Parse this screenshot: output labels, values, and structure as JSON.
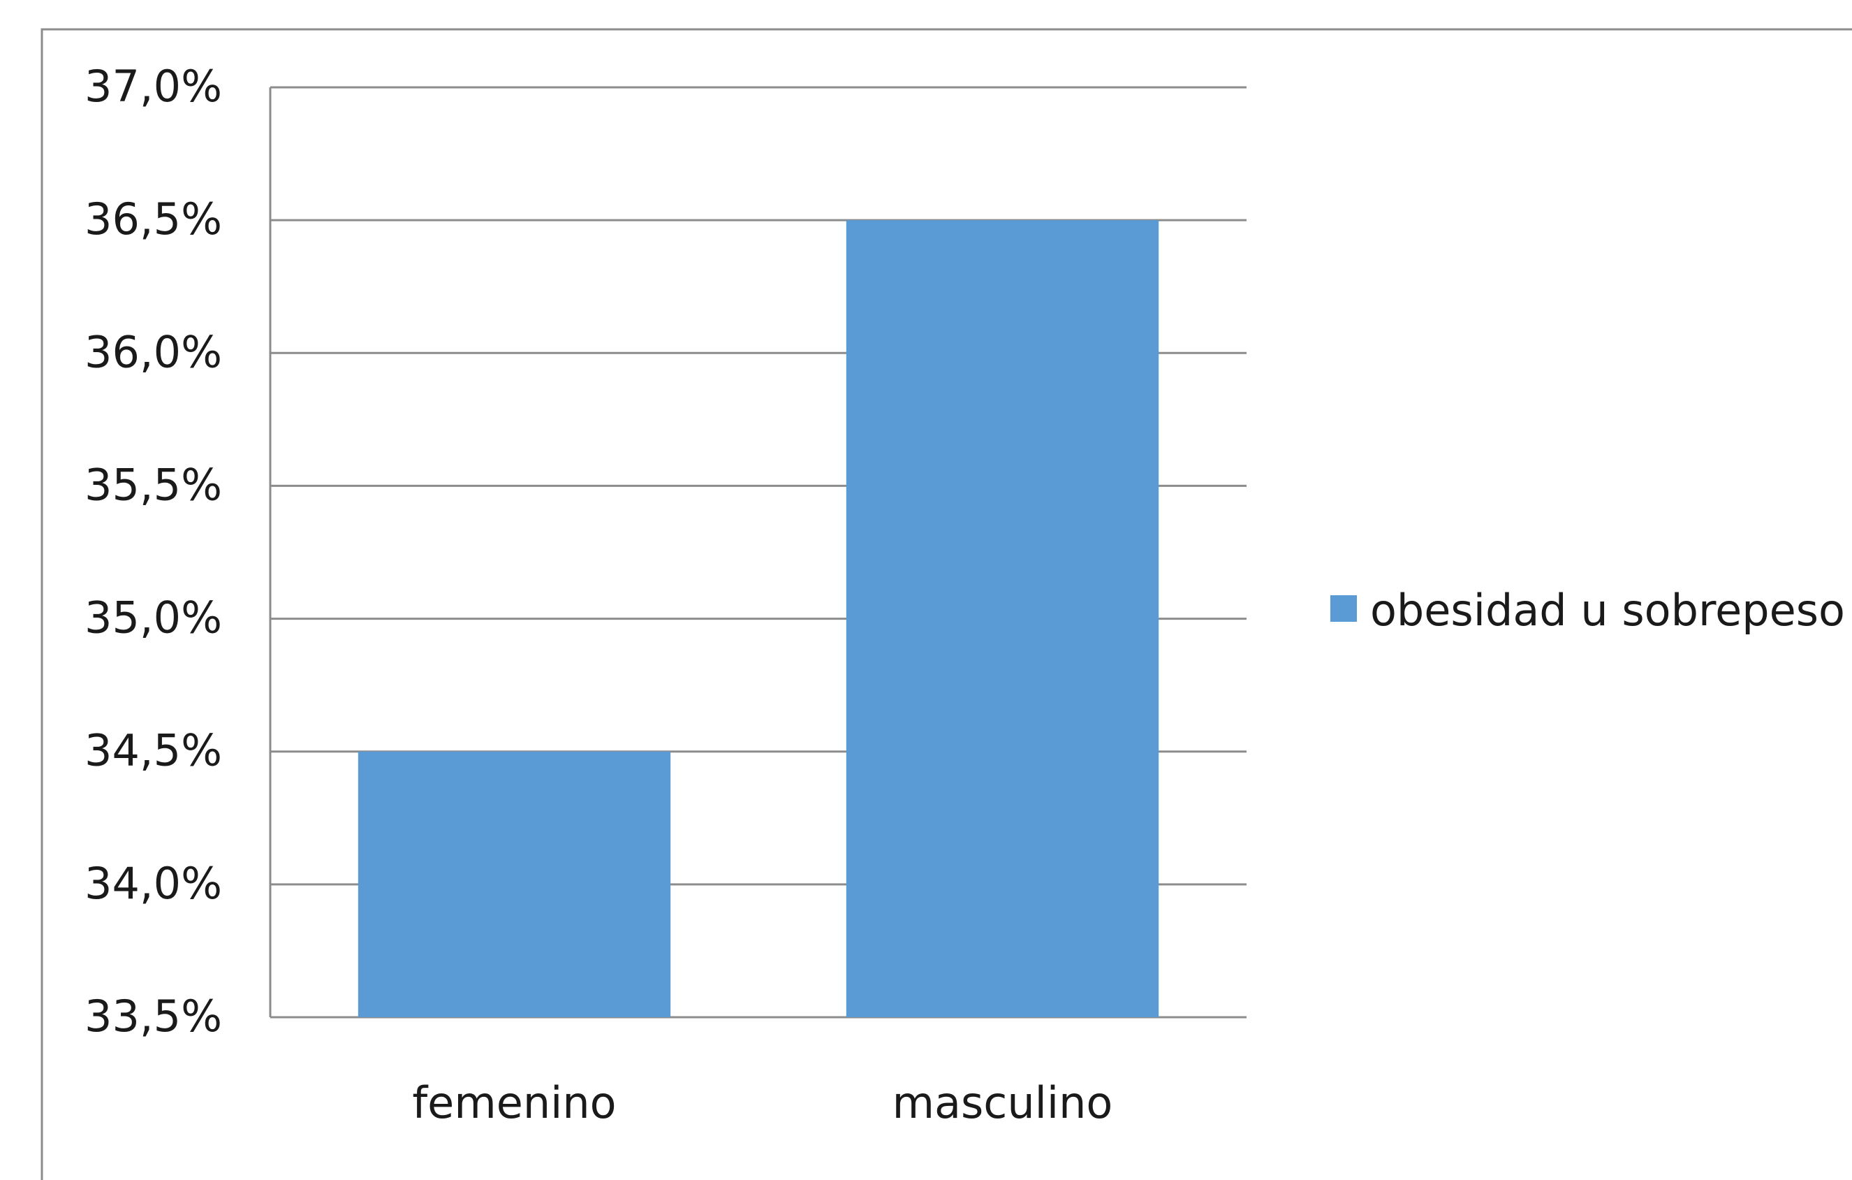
{
  "chart_data": {
    "type": "bar",
    "categories": [
      "femenino",
      "masculino"
    ],
    "series": [
      {
        "name": "obesidad  u sobrepeso",
        "values": [
          34.5,
          36.5
        ]
      }
    ],
    "ylim": [
      33.5,
      37.0
    ],
    "yticks": [
      33.5,
      34.0,
      34.5,
      35.0,
      35.5,
      36.0,
      36.5,
      37.0
    ],
    "ytick_labels": [
      "33,5%",
      "34,0%",
      "34,5%",
      "35,0%",
      "35,5%",
      "36,0%",
      "36,5%",
      "37,0%"
    ],
    "grid": true,
    "legend_position": "right",
    "colors": {
      "bar": "#5b9bd5",
      "grid": "#8c8c8c",
      "frame": "#8c8c8c"
    }
  }
}
